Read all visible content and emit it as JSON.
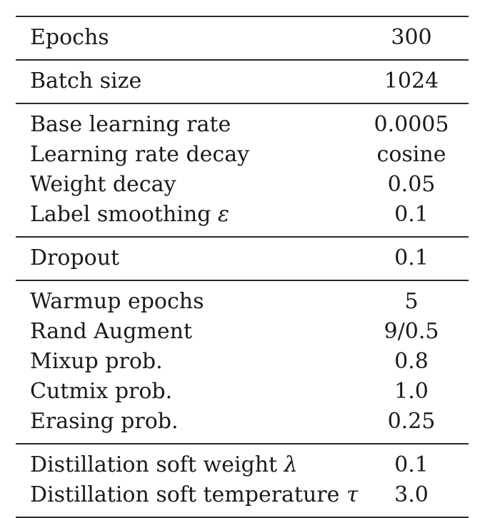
{
  "groups": [
    {
      "rows": [
        {
          "label": "Epochs",
          "symbol": "",
          "value": "300"
        }
      ]
    },
    {
      "rows": [
        {
          "label": "Batch size",
          "symbol": "",
          "value": "1024"
        }
      ]
    },
    {
      "rows": [
        {
          "label": "Base learning rate",
          "symbol": "",
          "value": "0.0005"
        },
        {
          "label": "Learning rate decay",
          "symbol": "",
          "value": "cosine"
        },
        {
          "label": "Weight decay",
          "symbol": "",
          "value": "0.05"
        },
        {
          "label": "Label smoothing",
          "symbol": "ε",
          "value": "0.1"
        }
      ]
    },
    {
      "rows": [
        {
          "label": "Dropout",
          "symbol": "",
          "value": "0.1"
        }
      ]
    },
    {
      "rows": [
        {
          "label": "Warmup epochs",
          "symbol": "",
          "value": "5"
        },
        {
          "label": "Rand Augment",
          "symbol": "",
          "value": "9/0.5"
        },
        {
          "label": "Mixup prob.",
          "symbol": "",
          "value": "0.8"
        },
        {
          "label": "Cutmix prob.",
          "symbol": "",
          "value": "1.0"
        },
        {
          "label": "Erasing prob.",
          "symbol": "",
          "value": "0.25"
        }
      ]
    },
    {
      "rows": [
        {
          "label": "Distillation soft weight",
          "symbol": "λ",
          "value": "0.1"
        },
        {
          "label": "Distillation soft temperature",
          "symbol": "τ",
          "value": "3.0"
        }
      ]
    }
  ]
}
